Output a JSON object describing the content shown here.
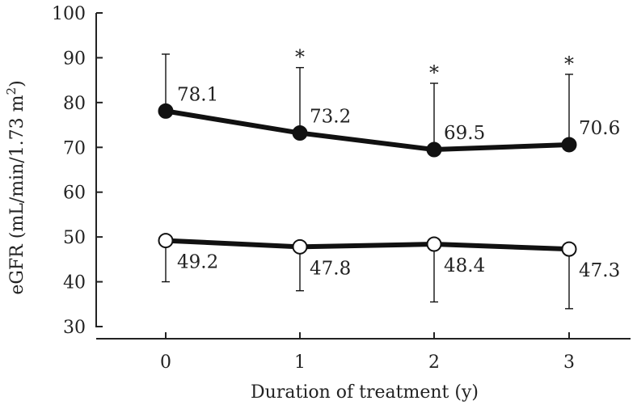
{
  "chart_data": {
    "type": "line",
    "title": "",
    "xlabel": "Duration of treatment (y)",
    "ylabel_main": "eGFR (mL/min/1.73 m",
    "ylabel_sup": "2",
    "ylabel_close": ")",
    "x": [
      0,
      1,
      2,
      3
    ],
    "x_tick_labels": [
      "0",
      "1",
      "2",
      "3"
    ],
    "ylim": [
      30,
      100
    ],
    "y_ticks": [
      30,
      40,
      50,
      60,
      70,
      80,
      90,
      100
    ],
    "y_tick_labels": [
      "30",
      "40",
      "50",
      "60",
      "70",
      "80",
      "90",
      "100"
    ],
    "series": [
      {
        "name": "filled",
        "marker": "filled-circle",
        "values": [
          78.1,
          73.2,
          69.5,
          70.6
        ],
        "value_labels": [
          "78.1",
          "73.2",
          "69.5",
          "70.6"
        ],
        "error_upper": [
          90.8,
          87.8,
          84.3,
          86.3
        ],
        "error_direction": "up",
        "significance": [
          "",
          "*",
          "*",
          "*"
        ]
      },
      {
        "name": "open",
        "marker": "open-circle",
        "values": [
          49.2,
          47.8,
          48.4,
          47.3
        ],
        "value_labels": [
          "49.2",
          "47.8",
          "48.4",
          "47.3"
        ],
        "error_lower": [
          40.0,
          38.0,
          35.5,
          34.0
        ],
        "error_direction": "down",
        "significance": [
          "",
          "",
          "",
          ""
        ]
      }
    ],
    "colors": {
      "line": "#111111",
      "axis": "#222222",
      "open_fill": "#ffffff"
    }
  }
}
